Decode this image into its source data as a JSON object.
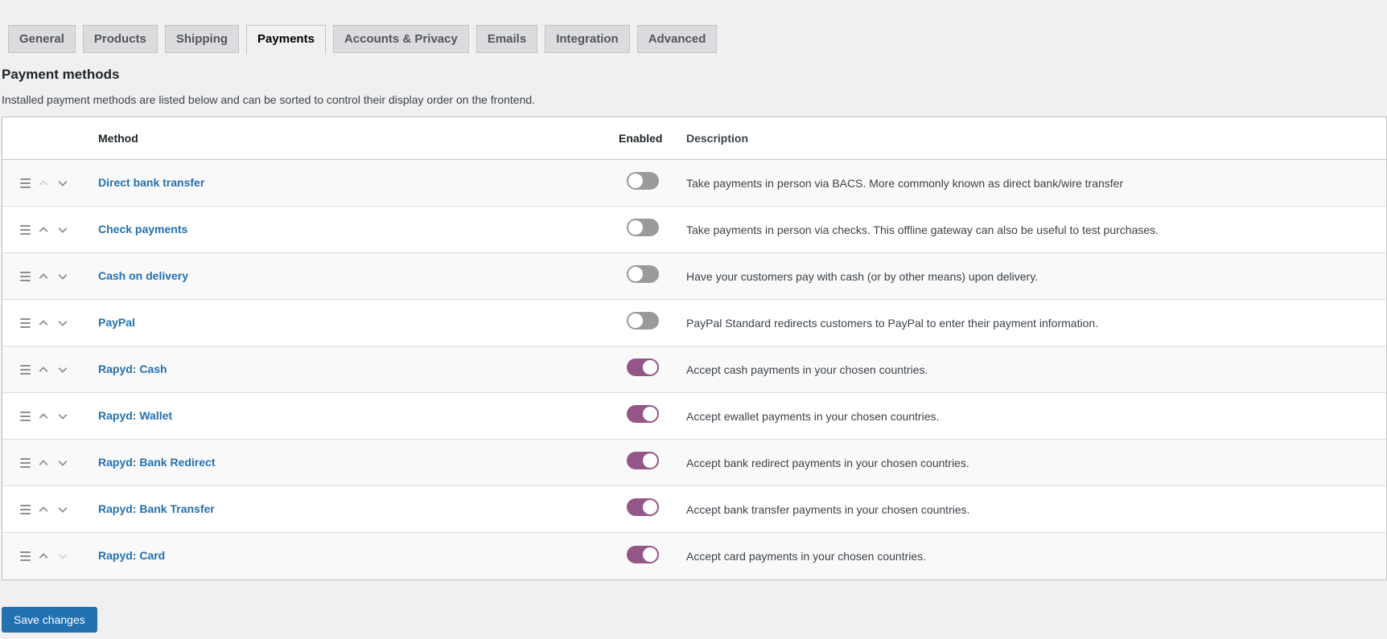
{
  "tabs": {
    "items": [
      {
        "label": "General",
        "active": false
      },
      {
        "label": "Products",
        "active": false
      },
      {
        "label": "Shipping",
        "active": false
      },
      {
        "label": "Payments",
        "active": true
      },
      {
        "label": "Accounts &amp; Privacy",
        "active": false
      },
      {
        "label": "Emails",
        "active": false
      },
      {
        "label": "Integration",
        "active": false
      },
      {
        "label": "Advanced",
        "active": false
      }
    ]
  },
  "page": {
    "title": "Payment methods",
    "subtitle": "Installed payment methods are listed below and can be sorted to control their display order on the frontend."
  },
  "table": {
    "columns": {
      "method": "Method",
      "enabled": "Enabled",
      "description": "Description"
    },
    "rows": [
      {
        "method": "Direct bank transfer",
        "enabled": false,
        "up_disabled": true,
        "down_disabled": false,
        "description": "Take payments in person via BACS. More commonly known as direct bank/wire transfer"
      },
      {
        "method": "Check payments",
        "enabled": false,
        "up_disabled": false,
        "down_disabled": false,
        "description": "Take payments in person via checks. This offline gateway can also be useful to test purchases."
      },
      {
        "method": "Cash on delivery",
        "enabled": false,
        "up_disabled": false,
        "down_disabled": false,
        "description": "Have your customers pay with cash (or by other means) upon delivery."
      },
      {
        "method": "PayPal",
        "enabled": false,
        "up_disabled": false,
        "down_disabled": false,
        "description": "PayPal Standard redirects customers to PayPal to enter their payment information."
      },
      {
        "method": "Rapyd: Cash",
        "enabled": true,
        "up_disabled": false,
        "down_disabled": false,
        "description": "Accept cash payments in your chosen countries."
      },
      {
        "method": "Rapyd: Wallet",
        "enabled": true,
        "up_disabled": false,
        "down_disabled": false,
        "description": "Accept ewallet payments in your chosen countries."
      },
      {
        "method": "Rapyd: Bank Redirect",
        "enabled": true,
        "up_disabled": false,
        "down_disabled": false,
        "description": "Accept bank redirect payments in your chosen countries."
      },
      {
        "method": "Rapyd: Bank Transfer",
        "enabled": true,
        "up_disabled": false,
        "down_disabled": false,
        "description": "Accept bank transfer payments in your chosen countries."
      },
      {
        "method": "Rapyd: Card",
        "enabled": true,
        "up_disabled": false,
        "down_disabled": true,
        "description": "Accept card payments in your chosen countries."
      }
    ]
  },
  "footer": {
    "save_label": "Save changes"
  },
  "icons": {
    "drag": "drag-handle-icon",
    "move_up": "chevron-up-icon",
    "move_down": "chevron-down-icon"
  },
  "colors": {
    "toggle_on": "#935687",
    "toggle_off": "#999a9b",
    "link": "#2271b1",
    "button": "#2271b1"
  }
}
